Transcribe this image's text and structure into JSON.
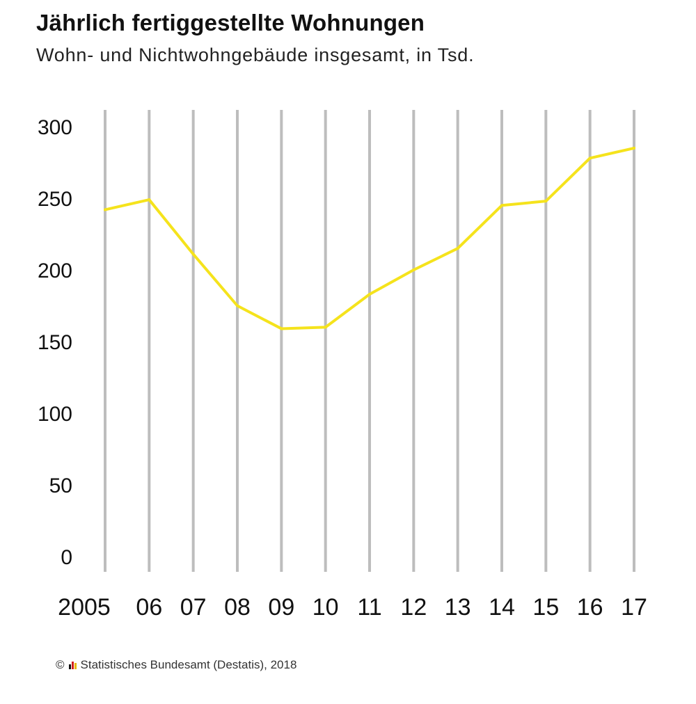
{
  "chart_data": {
    "type": "line",
    "title": "Jährlich fertiggestellte Wohnungen",
    "subtitle": "Wohn- und Nichtwohngebäude insgesamt, in Tsd.",
    "xlabel": "",
    "ylabel": "",
    "categories": [
      "2005",
      "06",
      "07",
      "08",
      "09",
      "10",
      "11",
      "12",
      "13",
      "14",
      "15",
      "16",
      "17"
    ],
    "x": [
      2005,
      2006,
      2007,
      2008,
      2009,
      2010,
      2011,
      2012,
      2013,
      2014,
      2015,
      2016,
      2017
    ],
    "series": [
      {
        "values": [
          242,
          249,
          211,
          175,
          159,
          160,
          183,
          200,
          215,
          245,
          248,
          278,
          285
        ]
      }
    ],
    "y_ticks": [
      "0",
      "50",
      "100",
      "150",
      "200",
      "250",
      "300"
    ],
    "ylim": [
      0,
      300
    ],
    "grid": "vertical",
    "legend": "none"
  },
  "source_text": "Statistisches Bundesamt (Destatis), 2018",
  "copyright_symbol": "©",
  "colors": {
    "line": "#f5e31c",
    "grid": "#bdbdbd",
    "text": "#111111",
    "flag_bars": [
      "#111111",
      "#d22020",
      "#e8b900"
    ]
  }
}
